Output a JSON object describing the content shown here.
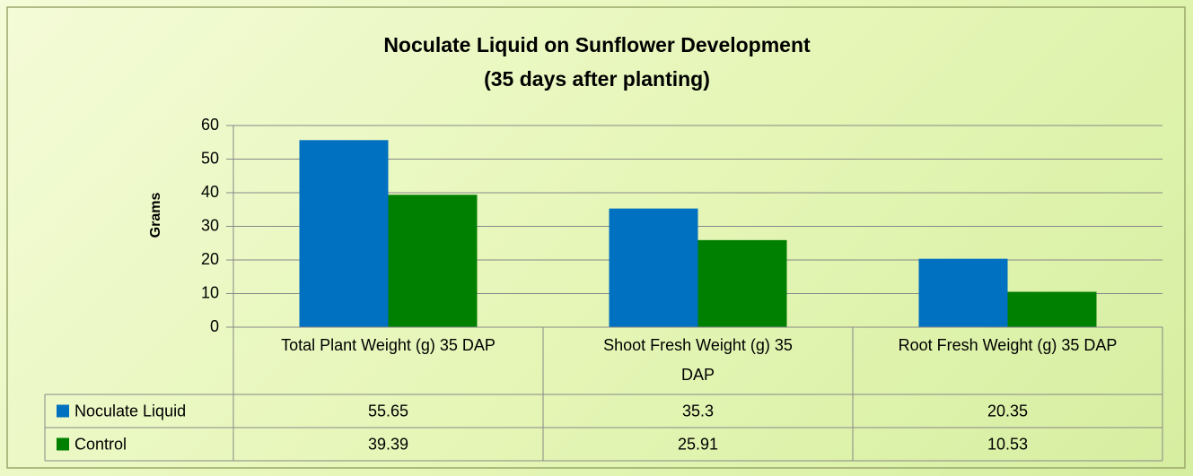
{
  "chart_data": {
    "type": "bar",
    "title": "Noculate Liquid on Sunflower Development",
    "subtitle": "(35 days after planting)",
    "y_label": "Grams",
    "categories": [
      "Total Plant Weight (g) 35 DAP",
      "Shoot Fresh Weight (g) 35 DAP",
      "Root Fresh Weight (g) 35 DAP"
    ],
    "series": [
      {
        "name": "Noculate Liquid",
        "color": "#0070c0",
        "values": [
          55.65,
          35.3,
          20.35
        ]
      },
      {
        "name": "Control",
        "color": "#008000",
        "values": [
          39.39,
          25.91,
          10.53
        ]
      }
    ],
    "ylim": [
      0,
      60
    ],
    "yticks": [
      0,
      10,
      20,
      30,
      40,
      50,
      60
    ],
    "grid": true,
    "data_table": true
  }
}
